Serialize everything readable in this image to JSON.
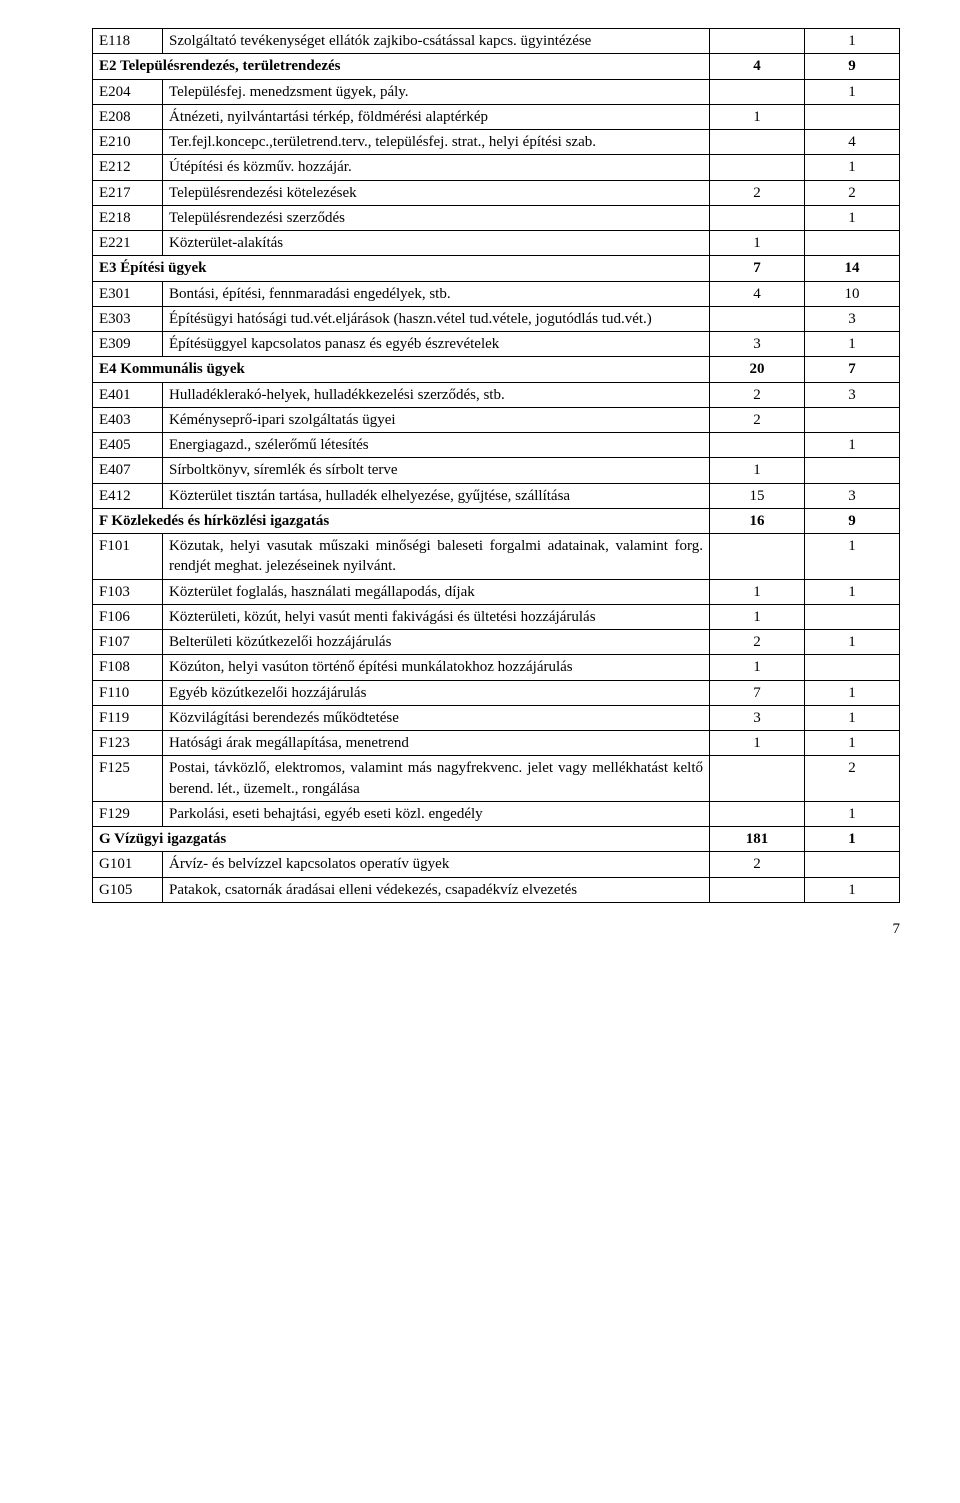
{
  "rows": [
    {
      "type": "row",
      "code": "E118",
      "desc": "Szolgáltató tevékenységet ellátók zajkibo-csátással kapcs. ügyintézése",
      "v1": "",
      "v2": "1"
    },
    {
      "type": "header",
      "desc": "E2 Településrendezés, területrendezés",
      "v1": "4",
      "v2": "9"
    },
    {
      "type": "row",
      "code": "E204",
      "desc": "Településfej. menedzsment ügyek, pály.",
      "v1": "",
      "v2": "1"
    },
    {
      "type": "row",
      "code": "E208",
      "desc": "Átnézeti, nyilvántartási térkép, földmérési alaptérkép",
      "v1": "1",
      "v2": ""
    },
    {
      "type": "row",
      "code": "E210",
      "desc": "Ter.fejl.koncepc.,területrend.terv., településfej. strat., helyi építési szab.",
      "v1": "",
      "v2": "4"
    },
    {
      "type": "row",
      "code": "E212",
      "desc": "Útépítési és közműv. hozzájár.",
      "v1": "",
      "v2": "1"
    },
    {
      "type": "row",
      "code": "E217",
      "desc": "Településrendezési kötelezések",
      "v1": "2",
      "v2": "2"
    },
    {
      "type": "row",
      "code": "E218",
      "desc": "Településrendezési szerződés",
      "v1": "",
      "v2": "1"
    },
    {
      "type": "row",
      "code": "E221",
      "desc": "Közterület-alakítás",
      "v1": "1",
      "v2": ""
    },
    {
      "type": "header",
      "desc": "E3 Építési ügyek",
      "v1": "7",
      "v2": "14"
    },
    {
      "type": "row",
      "code": "E301",
      "desc": "Bontási, építési, fennmaradási engedélyek, stb.",
      "v1": "4",
      "v2": "10"
    },
    {
      "type": "row",
      "code": "E303",
      "desc": "Építésügyi hatósági tud.vét.eljárások (haszn.vétel tud.vétele, jogutódlás tud.vét.)",
      "v1": "",
      "v2": "3"
    },
    {
      "type": "row",
      "code": "E309",
      "desc": "Építésüggyel kapcsolatos panasz és egyéb észrevételek",
      "v1": "3",
      "v2": "1"
    },
    {
      "type": "header",
      "desc": "E4 Kommunális ügyek",
      "v1": "20",
      "v2": "7"
    },
    {
      "type": "row",
      "code": "E401",
      "desc": "Hulladéklerakó-helyek, hulladékkezelési szerződés, stb.",
      "v1": "2",
      "v2": "3"
    },
    {
      "type": "row",
      "code": "E403",
      "desc": "Kéményseprő-ipari szolgáltatás ügyei",
      "v1": "2",
      "v2": ""
    },
    {
      "type": "row",
      "code": "E405",
      "desc": "Energiagazd., szélerőmű létesítés",
      "v1": "",
      "v2": "1"
    },
    {
      "type": "row",
      "code": "E407",
      "desc": "Sírboltkönyv, síremlék és sírbolt terve",
      "v1": "1",
      "v2": ""
    },
    {
      "type": "row",
      "code": "E412",
      "desc": "Közterület tisztán tartása, hulladék elhelyezése, gyűjtése, szállítása",
      "v1": "15",
      "v2": "3"
    },
    {
      "type": "header",
      "desc": "F Közlekedés és hírközlési igazgatás",
      "v1": "16",
      "v2": "9"
    },
    {
      "type": "row",
      "code": "F101",
      "desc": "Közutak, helyi vasutak műszaki minőségi baleseti forgalmi adatainak, valamint forg. rendjét meghat. jelezéseinek nyilvánt.",
      "v1": "",
      "v2": "1"
    },
    {
      "type": "row",
      "code": "F103",
      "desc": "Közterület foglalás, használati megállapodás, díjak",
      "v1": "1",
      "v2": "1"
    },
    {
      "type": "row",
      "code": "F106",
      "desc": "Közterületi, közút, helyi vasút menti fakivágási és ültetési hozzájárulás",
      "v1": "1",
      "v2": ""
    },
    {
      "type": "row",
      "code": "F107",
      "desc": "Belterületi közútkezelői hozzájárulás",
      "v1": "2",
      "v2": "1"
    },
    {
      "type": "row",
      "code": "F108",
      "desc": "Közúton, helyi vasúton történő építési munkálatokhoz hozzájárulás",
      "v1": "1",
      "v2": ""
    },
    {
      "type": "row",
      "code": "F110",
      "desc": "Egyéb közútkezelői hozzájárulás",
      "v1": "7",
      "v2": "1"
    },
    {
      "type": "row",
      "code": "F119",
      "desc": "Közvilágítási berendezés működtetése",
      "v1": "3",
      "v2": "1"
    },
    {
      "type": "row",
      "code": "F123",
      "desc": "Hatósági árak megállapítása, menetrend",
      "v1": "1",
      "v2": "1"
    },
    {
      "type": "row",
      "code": "F125",
      "desc": "Postai, távközlő, elektromos, valamint más nagyfrekvenc. jelet vagy mellékhatást keltő berend. lét., üzemelt., rongálása",
      "v1": "",
      "v2": "2"
    },
    {
      "type": "row",
      "code": "F129",
      "desc": "Parkolási, eseti behajtási, egyéb eseti közl. engedély",
      "v1": "",
      "v2": "1"
    },
    {
      "type": "header",
      "desc": "G Vízügyi igazgatás",
      "v1": "181",
      "v2": "1"
    },
    {
      "type": "row",
      "code": "G101",
      "desc": "Árvíz- és belvízzel kapcsolatos operatív ügyek",
      "v1": "2",
      "v2": ""
    },
    {
      "type": "row",
      "code": "G105",
      "desc": "Patakok, csatornák áradásai elleni védekezés, csapadékvíz elvezetés",
      "v1": "",
      "v2": "1"
    }
  ],
  "page_number": "7"
}
